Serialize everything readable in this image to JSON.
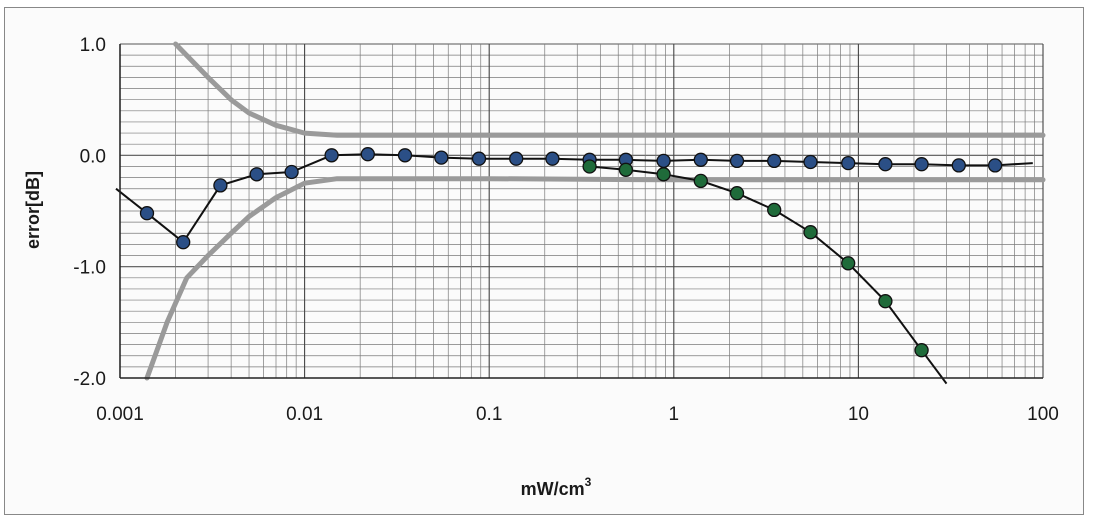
{
  "chart_data": {
    "type": "line",
    "title": "",
    "xlabel": "mW/cm",
    "xlabel_superscript": "3",
    "ylabel": "error[dB]",
    "x_scale": "log",
    "xlim": [
      0.001,
      100
    ],
    "ylim": [
      -2.0,
      1.0
    ],
    "x_ticks": [
      "0.001",
      "0.01",
      "0.1",
      "1",
      "10",
      "100"
    ],
    "y_ticks": [
      "1.0",
      "0.0",
      "-1.0",
      "-2.0"
    ],
    "y_tick_values": [
      1.0,
      0.0,
      -1.0,
      -2.0
    ],
    "x_tick_values": [
      0.001,
      0.01,
      0.1,
      1,
      10,
      100
    ],
    "grid": true,
    "legend": "none",
    "series": [
      {
        "color": "#2b4f86",
        "style": "line-with-markers",
        "x": [
          0.00079,
          0.0014,
          0.0022,
          0.0035,
          0.0055,
          0.0085,
          0.014,
          0.022,
          0.035,
          0.055,
          0.088,
          0.14,
          0.22,
          0.35,
          0.55,
          0.88,
          1.4,
          2.2,
          3.5,
          5.5,
          8.8,
          14,
          22,
          35,
          55,
          88
        ],
        "y": [
          -0.3,
          -0.52,
          -0.78,
          -0.27,
          -0.17,
          -0.15,
          0.0,
          0.01,
          0.0,
          -0.02,
          -0.03,
          -0.03,
          -0.03,
          -0.04,
          -0.04,
          -0.05,
          -0.04,
          -0.05,
          -0.05,
          -0.06,
          -0.07,
          -0.08,
          -0.08,
          -0.09,
          -0.09,
          -0.07
        ],
        "marker_from_index": 1,
        "marker_to_index": 24
      },
      {
        "color": "#1f6b3a",
        "style": "line-with-markers",
        "x": [
          0.35,
          0.55,
          0.88,
          1.4,
          2.2,
          3.5,
          5.5,
          8.8,
          14,
          22,
          30
        ],
        "y": [
          -0.1,
          -0.13,
          -0.17,
          -0.23,
          -0.34,
          -0.49,
          -0.69,
          -0.97,
          -1.31,
          -1.75,
          -2.05
        ],
        "marker_from_index": 0,
        "marker_to_index": 9
      }
    ],
    "bounds": [
      {
        "color": "#9a9a9a",
        "x": [
          0.002,
          0.003,
          0.004,
          0.005,
          0.007,
          0.01,
          0.015,
          0.02,
          0.05,
          0.1,
          1,
          10,
          100
        ],
        "y": [
          1.0,
          0.7,
          0.5,
          0.38,
          0.27,
          0.2,
          0.18,
          0.18,
          0.18,
          0.18,
          0.18,
          0.18,
          0.18
        ]
      },
      {
        "color": "#9a9a9a",
        "x": [
          0.0014,
          0.0018,
          0.0023,
          0.003,
          0.004,
          0.005,
          0.007,
          0.01,
          0.015,
          0.02,
          0.05,
          0.1,
          1,
          10,
          100
        ],
        "y": [
          -2.0,
          -1.5,
          -1.1,
          -0.9,
          -0.7,
          -0.55,
          -0.38,
          -0.25,
          -0.21,
          -0.21,
          -0.21,
          -0.21,
          -0.22,
          -0.22,
          -0.22
        ]
      }
    ]
  }
}
